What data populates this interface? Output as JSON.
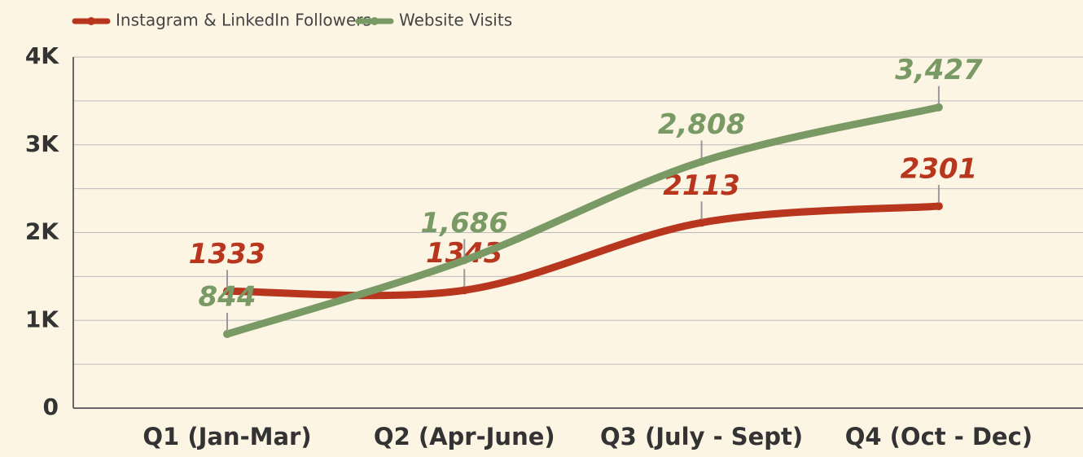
{
  "chart_data": {
    "type": "line",
    "categories": [
      "Q1 (Jan-Mar)",
      "Q2 (Apr-June)",
      "Q3 (July - Sept)",
      "Q4 (Oct - Dec)"
    ],
    "series": [
      {
        "name": "Instagram & LinkedIn Followers",
        "color": "#b8361e",
        "values": [
          1333,
          1343,
          2113,
          2301
        ]
      },
      {
        "name": "Website Visits",
        "color": "#7a9a65",
        "values": [
          844,
          1686,
          2808,
          3427
        ],
        "value_labels": [
          "844",
          "1,686",
          "2,808",
          "3,427"
        ]
      }
    ],
    "ylim": [
      0,
      4000
    ],
    "yticks": [
      0,
      {
        "value": 1000,
        "label": "1K"
      },
      {
        "value": 2000,
        "label": "2K"
      },
      {
        "value": 3000,
        "label": "3K"
      },
      {
        "value": 4000,
        "label": "4K"
      }
    ],
    "minor_yticks": [
      500,
      1500,
      2500,
      3500
    ],
    "grid": true,
    "legend": "top-left"
  }
}
